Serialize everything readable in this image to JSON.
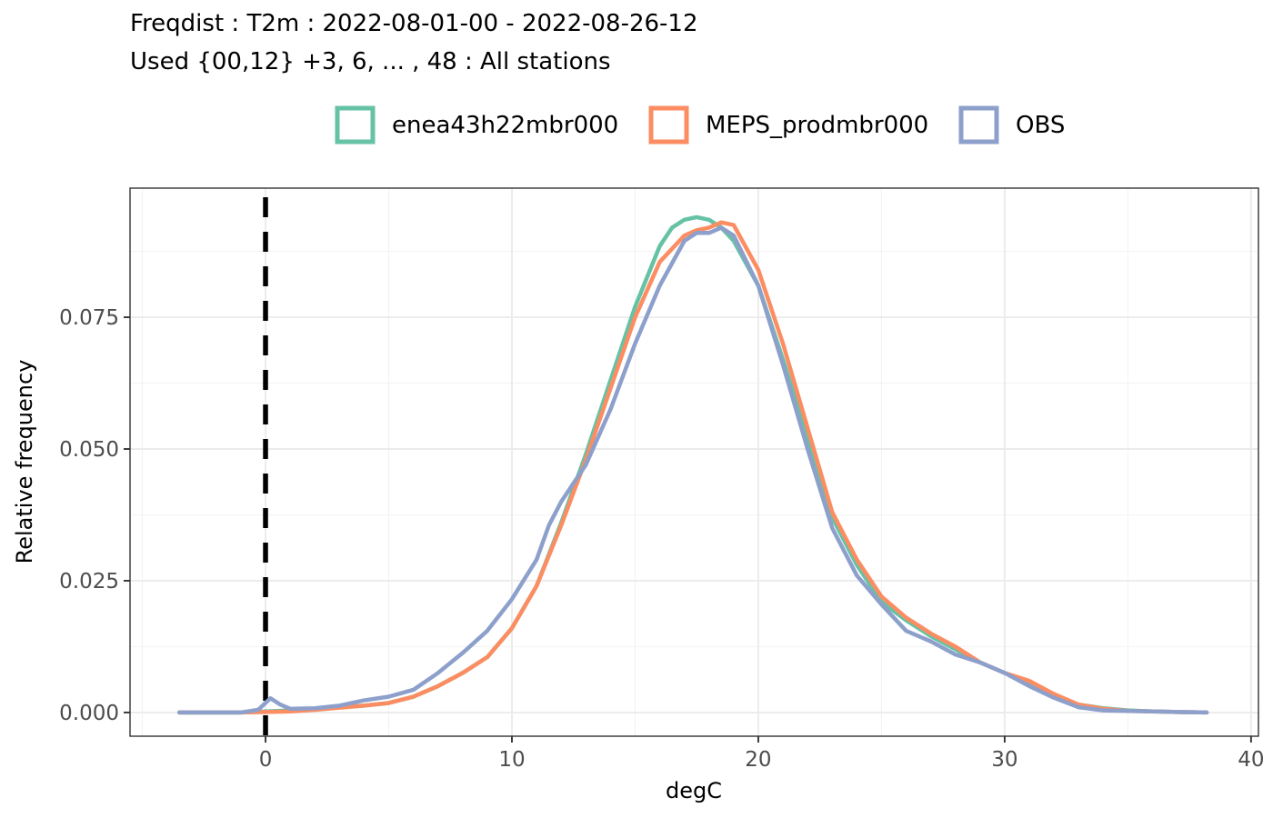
{
  "chart_data": {
    "type": "line",
    "title": "Freqdist : T2m : 2022-08-01-00 - 2022-08-26-12",
    "subtitle": "Used {00,12} +3, 6, ... , 48 : All stations",
    "xlabel": "degC",
    "ylabel": "Relative frequency",
    "xlim": [
      -5.5,
      40.3
    ],
    "ylim": [
      -0.0045,
      0.0995
    ],
    "x_ticks": [
      0,
      10,
      20,
      30,
      40
    ],
    "x_tick_labels": [
      "0",
      "10",
      "20",
      "30",
      "40"
    ],
    "y_ticks": [
      0.0,
      0.025,
      0.05,
      0.075
    ],
    "y_tick_labels": [
      "0.000",
      "0.025",
      "0.050",
      "0.075"
    ],
    "x_minor_ticks": [
      -5,
      5,
      15,
      25,
      35
    ],
    "y_minor_ticks": [
      0.0125,
      0.0375,
      0.0625,
      0.0875
    ],
    "grid": true,
    "legend_position": "top",
    "reference_line": {
      "x": 0,
      "style": "dashed",
      "color": "#000000"
    },
    "series": [
      {
        "name": "enea43h22mbr000",
        "color": "#66c2a5",
        "x": [
          -3.5,
          -1,
          0,
          1,
          2,
          3,
          4,
          5,
          6,
          7,
          8,
          9,
          10,
          11,
          12,
          13,
          14,
          15,
          16,
          16.5,
          17,
          17.5,
          18,
          18.5,
          19,
          20,
          21,
          22,
          23,
          24,
          25,
          26,
          27,
          28,
          29,
          30,
          31,
          32,
          33,
          34,
          35,
          36,
          37,
          38.2
        ],
        "y": [
          0.0,
          0.0,
          0.0002,
          0.0004,
          0.0007,
          0.001,
          0.0013,
          0.0018,
          0.003,
          0.005,
          0.0075,
          0.0105,
          0.016,
          0.024,
          0.036,
          0.049,
          0.063,
          0.077,
          0.0885,
          0.092,
          0.0935,
          0.094,
          0.0935,
          0.092,
          0.0895,
          0.081,
          0.067,
          0.052,
          0.037,
          0.028,
          0.021,
          0.0175,
          0.0145,
          0.012,
          0.0095,
          0.0075,
          0.0055,
          0.003,
          0.0015,
          0.0008,
          0.0004,
          0.0002,
          0.0001,
          0.0
        ]
      },
      {
        "name": "MEPS_prodmbr000",
        "color": "#fc8d62",
        "x": [
          -3.5,
          -1,
          0,
          1,
          2,
          3,
          4,
          5,
          6,
          7,
          8,
          9,
          10,
          11,
          12,
          13,
          14,
          15,
          16,
          17,
          17.5,
          18,
          18.5,
          19,
          20,
          21,
          22,
          23,
          24,
          25,
          26,
          27,
          28,
          29,
          30,
          31,
          32,
          33,
          34,
          35,
          36,
          37,
          38.2
        ],
        "y": [
          0.0,
          0.0,
          0.0001,
          0.0002,
          0.0005,
          0.0009,
          0.0013,
          0.0018,
          0.003,
          0.005,
          0.0075,
          0.0105,
          0.016,
          0.024,
          0.0355,
          0.048,
          0.0615,
          0.075,
          0.0855,
          0.0905,
          0.0915,
          0.092,
          0.093,
          0.0925,
          0.084,
          0.07,
          0.054,
          0.038,
          0.029,
          0.022,
          0.018,
          0.015,
          0.0125,
          0.0095,
          0.0075,
          0.006,
          0.0035,
          0.0015,
          0.0007,
          0.0003,
          0.0002,
          0.0001,
          0.0
        ]
      },
      {
        "name": "OBS",
        "color": "#8da0cb",
        "x": [
          -3.5,
          -1,
          -0.3,
          0.2,
          0.6,
          1,
          2,
          3,
          4,
          5,
          6,
          7,
          8,
          9,
          10,
          11,
          11.5,
          12,
          13,
          14,
          15,
          16,
          17,
          17.5,
          18,
          18.5,
          19,
          20,
          21,
          22,
          23,
          24,
          25,
          26,
          27,
          28,
          29,
          30,
          31,
          32,
          33,
          34,
          35,
          36,
          37,
          38.2
        ],
        "y": [
          0.0,
          0.0,
          0.0005,
          0.0027,
          0.0015,
          0.0007,
          0.0008,
          0.0013,
          0.0023,
          0.003,
          0.0043,
          0.0075,
          0.0113,
          0.0155,
          0.0215,
          0.029,
          0.0355,
          0.04,
          0.047,
          0.0575,
          0.07,
          0.081,
          0.0895,
          0.091,
          0.091,
          0.092,
          0.0905,
          0.081,
          0.066,
          0.05,
          0.035,
          0.026,
          0.0205,
          0.0155,
          0.0135,
          0.011,
          0.0095,
          0.0075,
          0.005,
          0.0028,
          0.001,
          0.0004,
          0.0003,
          0.0002,
          0.0001,
          0.0
        ]
      }
    ]
  }
}
